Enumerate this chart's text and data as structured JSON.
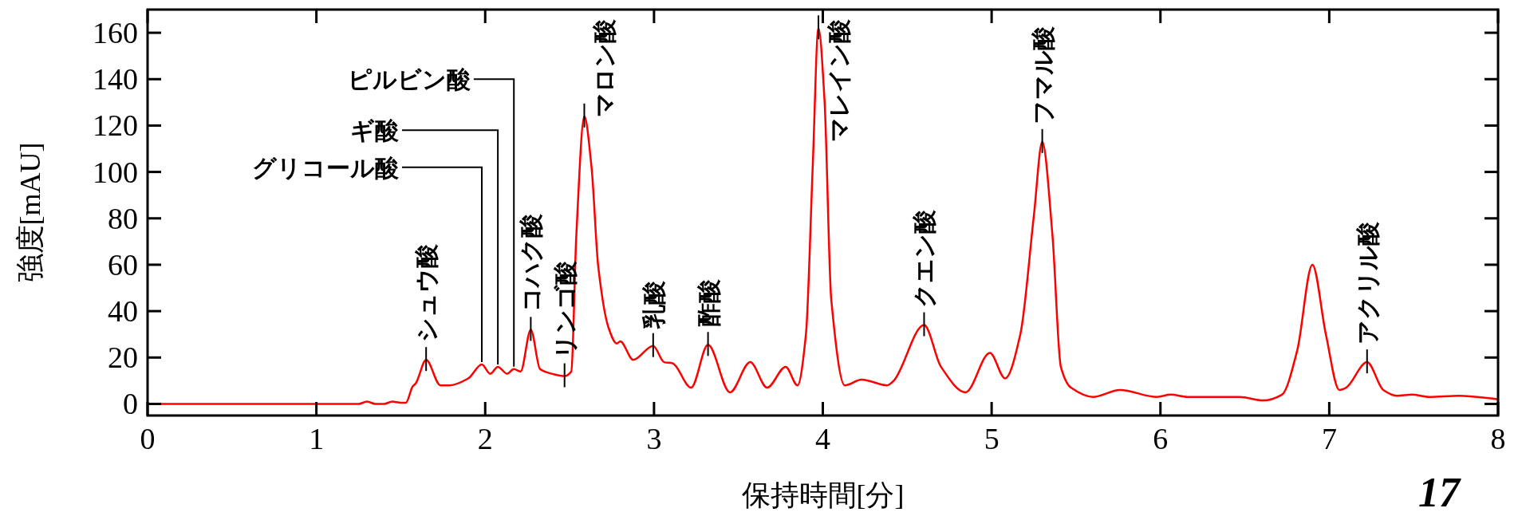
{
  "chart_data": {
    "type": "line",
    "xlabel": "保持時間[分]",
    "ylabel": "強度[mAU]",
    "xlim": [
      0,
      8
    ],
    "ylim": [
      -5,
      170
    ],
    "xticks": [
      0,
      1,
      2,
      3,
      4,
      5,
      6,
      7,
      8
    ],
    "yticks": [
      0,
      20,
      40,
      60,
      80,
      100,
      120,
      140,
      160
    ],
    "grid": false,
    "marker": "none",
    "line_style": "solid",
    "series": [
      {
        "color": "#ff0000",
        "x": [
          0,
          0.5,
          1.0,
          1.25,
          1.3,
          1.35,
          1.4,
          1.45,
          1.5,
          1.53,
          1.57,
          1.59,
          1.65,
          1.735,
          1.79,
          1.9,
          1.98,
          2.03,
          2.075,
          2.13,
          2.17,
          2.21,
          2.27,
          2.325,
          2.395,
          2.47,
          2.51,
          2.54,
          2.587,
          2.63,
          2.67,
          2.73,
          2.78,
          2.8,
          2.877,
          2.995,
          3.06,
          3.11,
          3.22,
          3.32,
          3.45,
          3.57,
          3.67,
          3.78,
          3.85,
          3.9,
          3.94,
          3.974,
          4.01,
          4.05,
          4.13,
          4.23,
          4.38,
          4.42,
          4.6,
          4.7,
          4.845,
          4.99,
          5.08,
          5.17,
          5.25,
          5.3,
          5.36,
          5.41,
          5.47,
          5.6,
          5.76,
          5.98,
          6.06,
          6.16,
          6.47,
          6.61,
          6.72,
          6.81,
          6.9,
          6.98,
          7.06,
          7.1,
          7.224,
          7.32,
          7.4,
          7.49,
          7.59,
          7.77,
          8.0
        ],
        "values": [
          0,
          0,
          0,
          0,
          1,
          0,
          0,
          1,
          0.5,
          0.5,
          7.5,
          9,
          19,
          8,
          8,
          11,
          17,
          13,
          16,
          13,
          15,
          14,
          32,
          15,
          13,
          12,
          14,
          73,
          124,
          102,
          59,
          33,
          26,
          27,
          19,
          25,
          18,
          17.5,
          7,
          25.5,
          5,
          18,
          7,
          16,
          8,
          30,
          102,
          162,
          131,
          45,
          8,
          10.5,
          8,
          10,
          34,
          16,
          5,
          22,
          11,
          30,
          81,
          113,
          73,
          16,
          7,
          3,
          6,
          3,
          4,
          3,
          3,
          1.5,
          4,
          23,
          60,
          30,
          6,
          7,
          18,
          6,
          3.5,
          4,
          3,
          3.5,
          2
        ]
      }
    ],
    "annotations": [
      {
        "text": "シュウ酸",
        "x": 1.65,
        "y": 19
      },
      {
        "text": "グリコール酸",
        "x": 1.98,
        "y": 17
      },
      {
        "text": "ギ酸",
        "x": 2.075,
        "y": 16
      },
      {
        "text": "ピルビン酸",
        "x": 2.17,
        "y": 15
      },
      {
        "text": "コハク酸",
        "x": 2.27,
        "y": 32
      },
      {
        "text": "リンゴ酸",
        "x": 2.47,
        "y": 12
      },
      {
        "text": "マロン酸",
        "x": 2.587,
        "y": 124
      },
      {
        "text": "乳酸",
        "x": 2.995,
        "y": 25
      },
      {
        "text": "酢酸",
        "x": 3.32,
        "y": 25.5
      },
      {
        "text": "マレイン酸",
        "x": 3.974,
        "y": 162
      },
      {
        "text": "クエン酸",
        "x": 4.6,
        "y": 34
      },
      {
        "text": "フマル酸",
        "x": 5.3,
        "y": 113
      },
      {
        "text": "アクリル酸",
        "x": 7.224,
        "y": 18
      },
      "17"
    ]
  }
}
